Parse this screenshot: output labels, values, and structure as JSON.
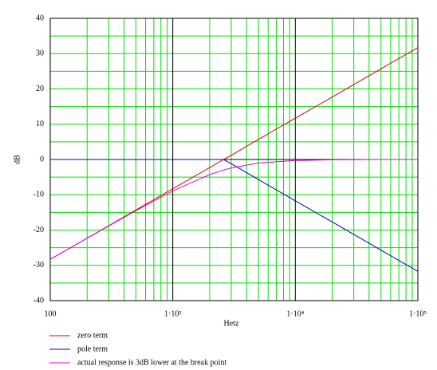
{
  "chart_data": {
    "type": "line",
    "xlabel": "Hetz",
    "ylabel": "dB",
    "log_x": true,
    "grid": true,
    "xlim": [
      100,
      100000
    ],
    "ylim": [
      -40,
      40
    ],
    "xticks": [
      100,
      {
        "value": 1000,
        "label": "1·10³"
      },
      {
        "value": 10000,
        "label": "1·10⁴"
      },
      {
        "value": 100000,
        "label": "1·10⁵"
      }
    ],
    "yticks": [
      -40,
      -30,
      -20,
      -10,
      0,
      10,
      20,
      30,
      40
    ],
    "x_minor_ticks": [
      200,
      300,
      400,
      500,
      600,
      700,
      800,
      900,
      2000,
      3000,
      4000,
      5000,
      6000,
      7000,
      8000,
      9000,
      20000,
      30000,
      40000,
      50000,
      60000,
      70000,
      80000,
      90000
    ],
    "y_minor_ticks": [
      -35,
      -25,
      -15,
      -5,
      5,
      15,
      25,
      35
    ],
    "x": [
      100,
      200,
      500,
      1000,
      2000,
      2600,
      3000,
      5000,
      10000,
      20000,
      50000,
      100000
    ],
    "series": [
      {
        "name": "zero term",
        "color": "#e00000",
        "values": [
          -28.3,
          -22.3,
          -14.3,
          -8.3,
          -2.3,
          0,
          1.2,
          5.7,
          11.7,
          17.7,
          25.7,
          31.7
        ]
      },
      {
        "name": "pole term",
        "color": "#0000c0",
        "values": [
          0,
          0,
          0,
          0,
          0,
          0,
          -1.2,
          -5.7,
          -11.7,
          -17.7,
          -25.7,
          -31.7
        ]
      },
      {
        "name": "actual response is 3dB lower at the break point",
        "color": "#e000e0",
        "values": [
          -28.3,
          -22.3,
          -14.5,
          -8.9,
          -4.3,
          -3.0,
          -2.4,
          -1.0,
          -0.3,
          -0.1,
          0,
          0
        ]
      }
    ]
  }
}
